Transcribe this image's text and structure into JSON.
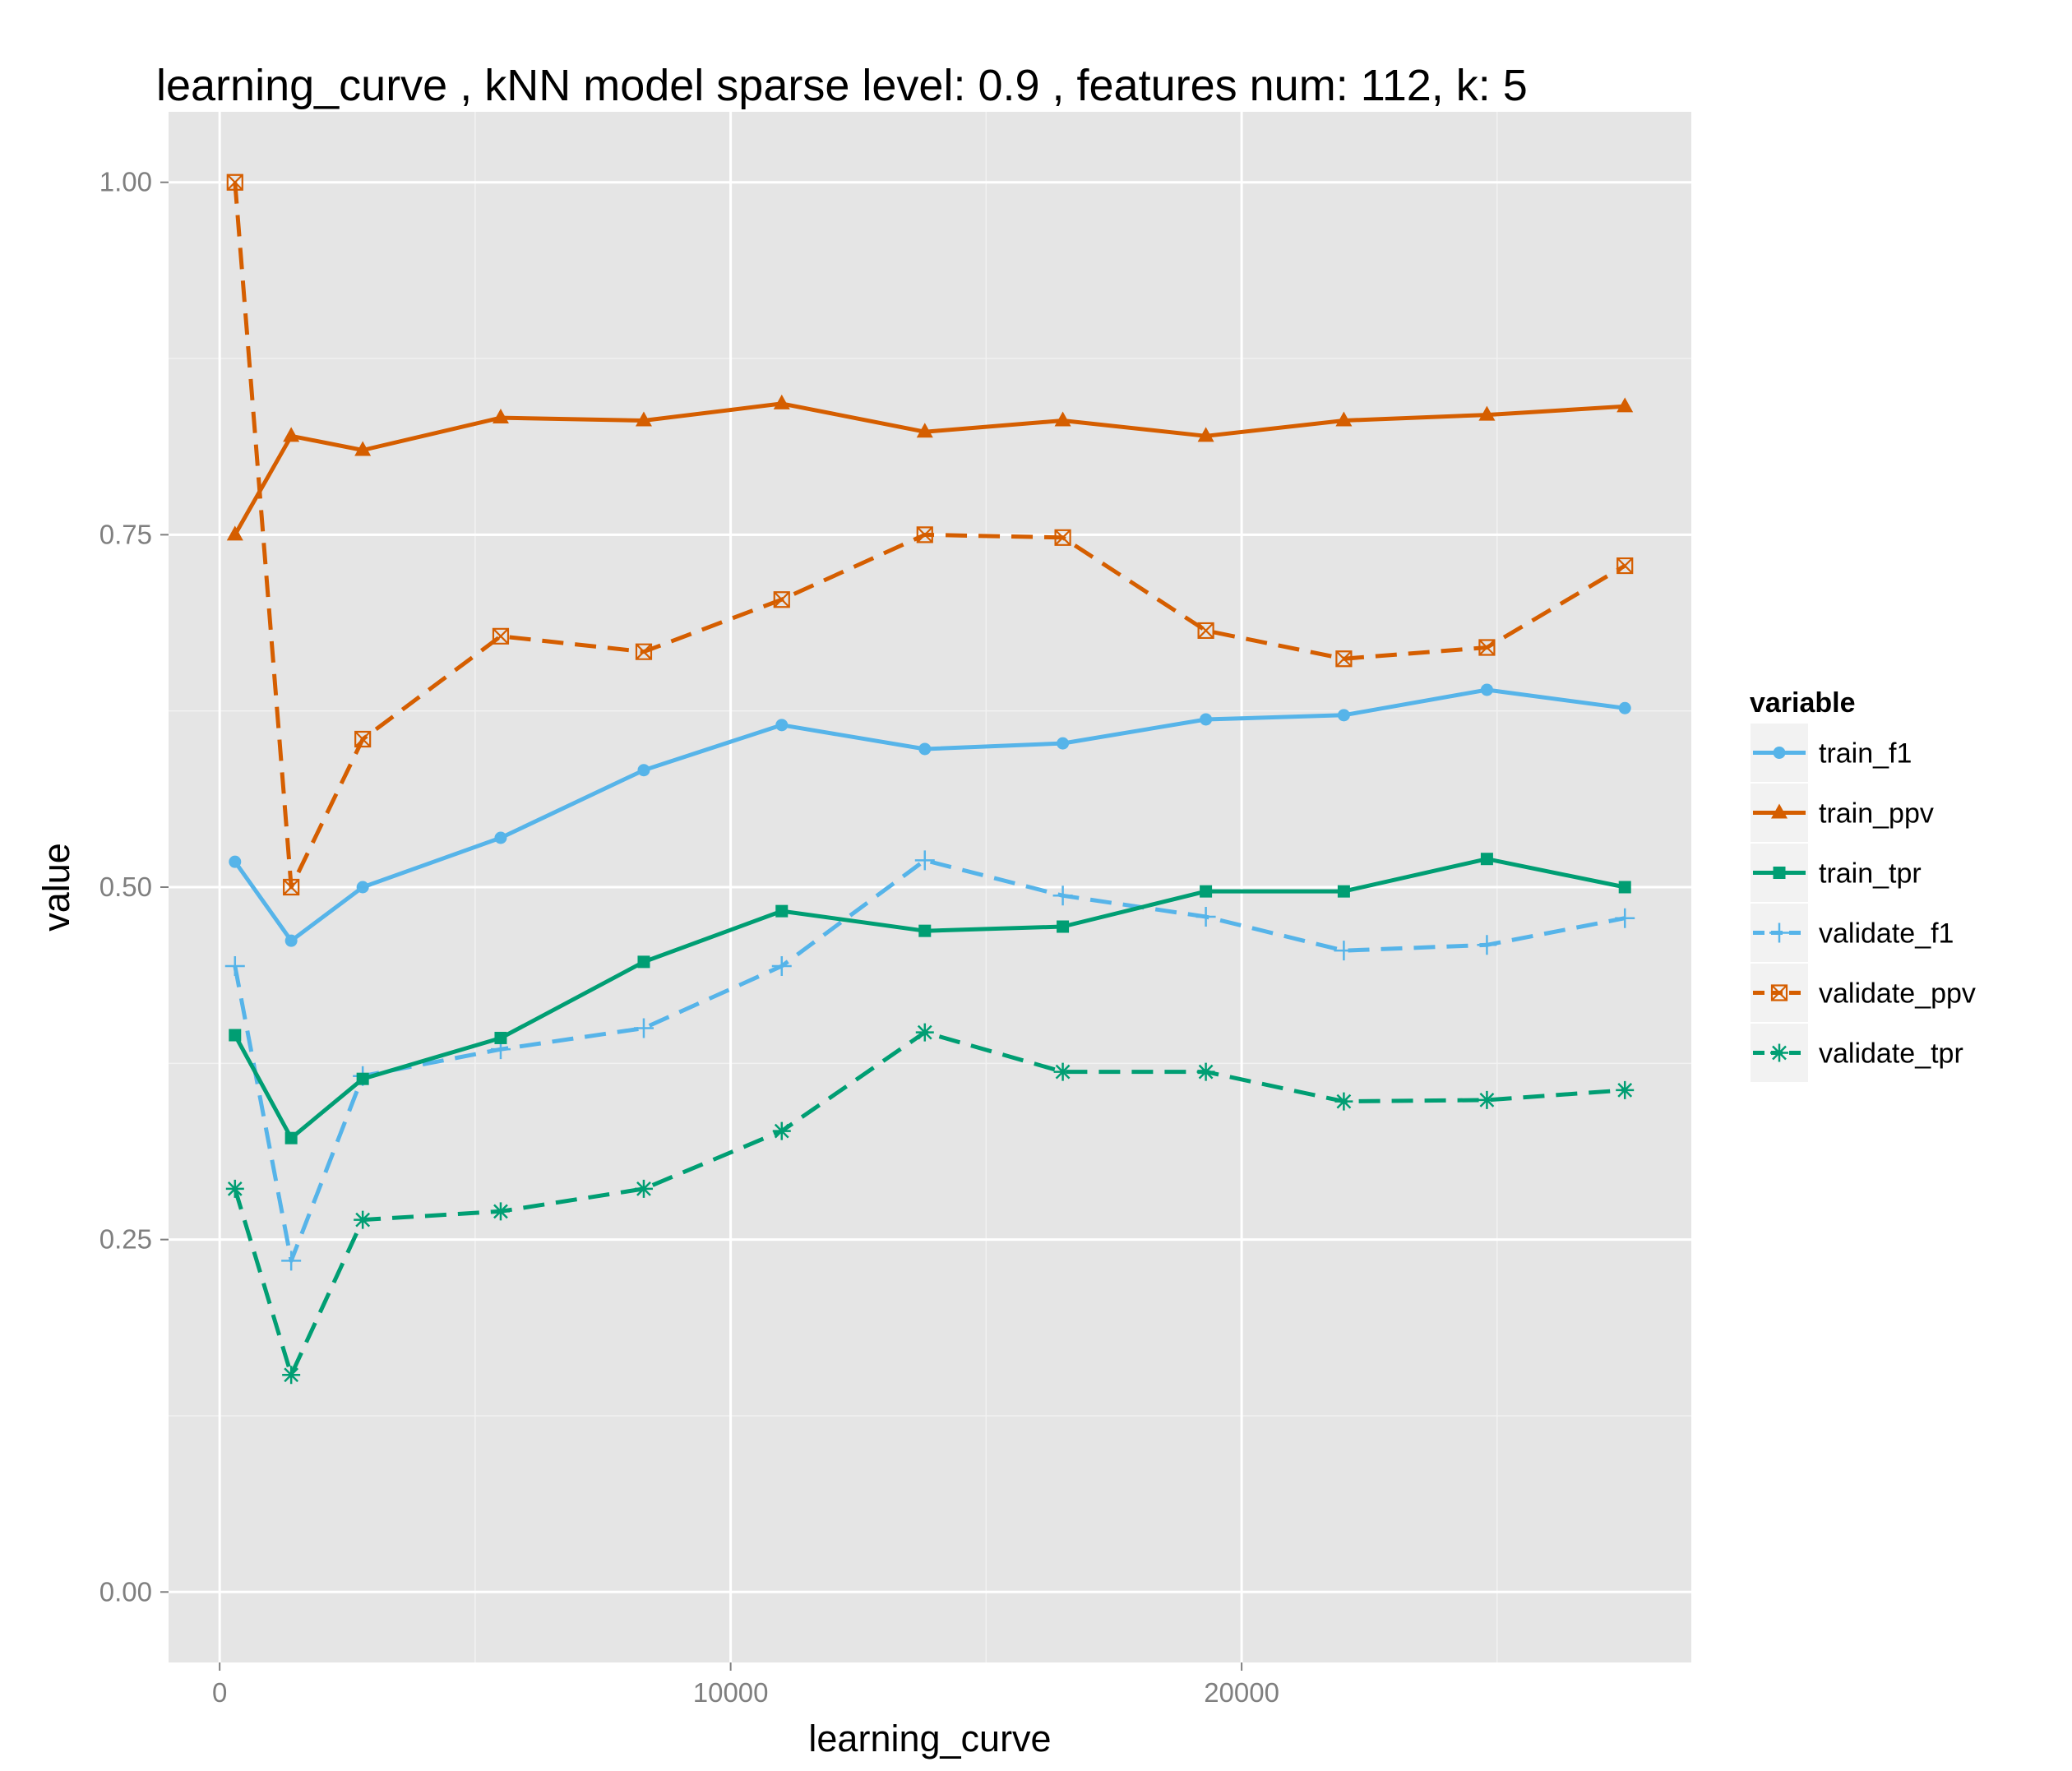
{
  "chart_data": {
    "type": "line",
    "title": "learning_curve ,  kNN model sparse level: 0.9 , features num: 112, k: 5",
    "xlabel": "learning_curve",
    "ylabel": "value",
    "xlim": [
      -1000,
      28800
    ],
    "ylim": [
      -0.05,
      1.05
    ],
    "x_ticks": [
      0,
      10000,
      20000
    ],
    "x_tick_labels": [
      "0",
      "10000",
      "20000"
    ],
    "y_ticks": [
      0,
      0.25,
      0.5,
      0.75,
      1.0
    ],
    "y_tick_labels": [
      "0.00",
      "0.25",
      "0.50",
      "0.75",
      "1.00"
    ],
    "grid": true,
    "background": "#e5e5e5",
    "legend": {
      "title": "variable",
      "position": "right"
    },
    "x": [
      300,
      1400,
      2800,
      5500,
      8300,
      11000,
      13800,
      16500,
      19300,
      22000,
      24800,
      27500
    ],
    "series": [
      {
        "name": "train_f1",
        "color": "#56b4e9",
        "dash": "solid",
        "marker": "circle",
        "values": [
          0.518,
          0.462,
          0.5,
          0.535,
          0.583,
          0.615,
          0.598,
          0.602,
          0.619,
          0.622,
          0.64,
          0.627
        ]
      },
      {
        "name": "train_ppv",
        "color": "#d55e00",
        "dash": "solid",
        "marker": "triangle",
        "values": [
          0.75,
          0.82,
          0.81,
          0.833,
          0.831,
          0.843,
          0.823,
          0.831,
          0.82,
          0.831,
          0.835,
          0.841
        ]
      },
      {
        "name": "train_tpr",
        "color": "#009e73",
        "dash": "solid",
        "marker": "square",
        "values": [
          0.395,
          0.322,
          0.364,
          0.393,
          0.447,
          0.483,
          0.469,
          0.472,
          0.497,
          0.497,
          0.52,
          0.5
        ]
      },
      {
        "name": "validate_f1",
        "color": "#56b4e9",
        "dash": "dashed",
        "marker": "plus",
        "values": [
          0.444,
          0.235,
          0.366,
          0.385,
          0.4,
          0.444,
          0.519,
          0.494,
          0.479,
          0.455,
          0.459,
          0.478
        ]
      },
      {
        "name": "validate_ppv",
        "color": "#d55e00",
        "dash": "dashed",
        "marker": "square-x",
        "values": [
          1.0,
          0.5,
          0.605,
          0.678,
          0.667,
          0.704,
          0.75,
          0.748,
          0.682,
          0.662,
          0.67,
          0.728
        ]
      },
      {
        "name": "validate_tpr",
        "color": "#009e73",
        "dash": "dashed",
        "marker": "asterisk",
        "values": [
          0.286,
          0.154,
          0.264,
          0.27,
          0.286,
          0.327,
          0.397,
          0.369,
          0.369,
          0.348,
          0.349,
          0.356
        ]
      }
    ]
  }
}
